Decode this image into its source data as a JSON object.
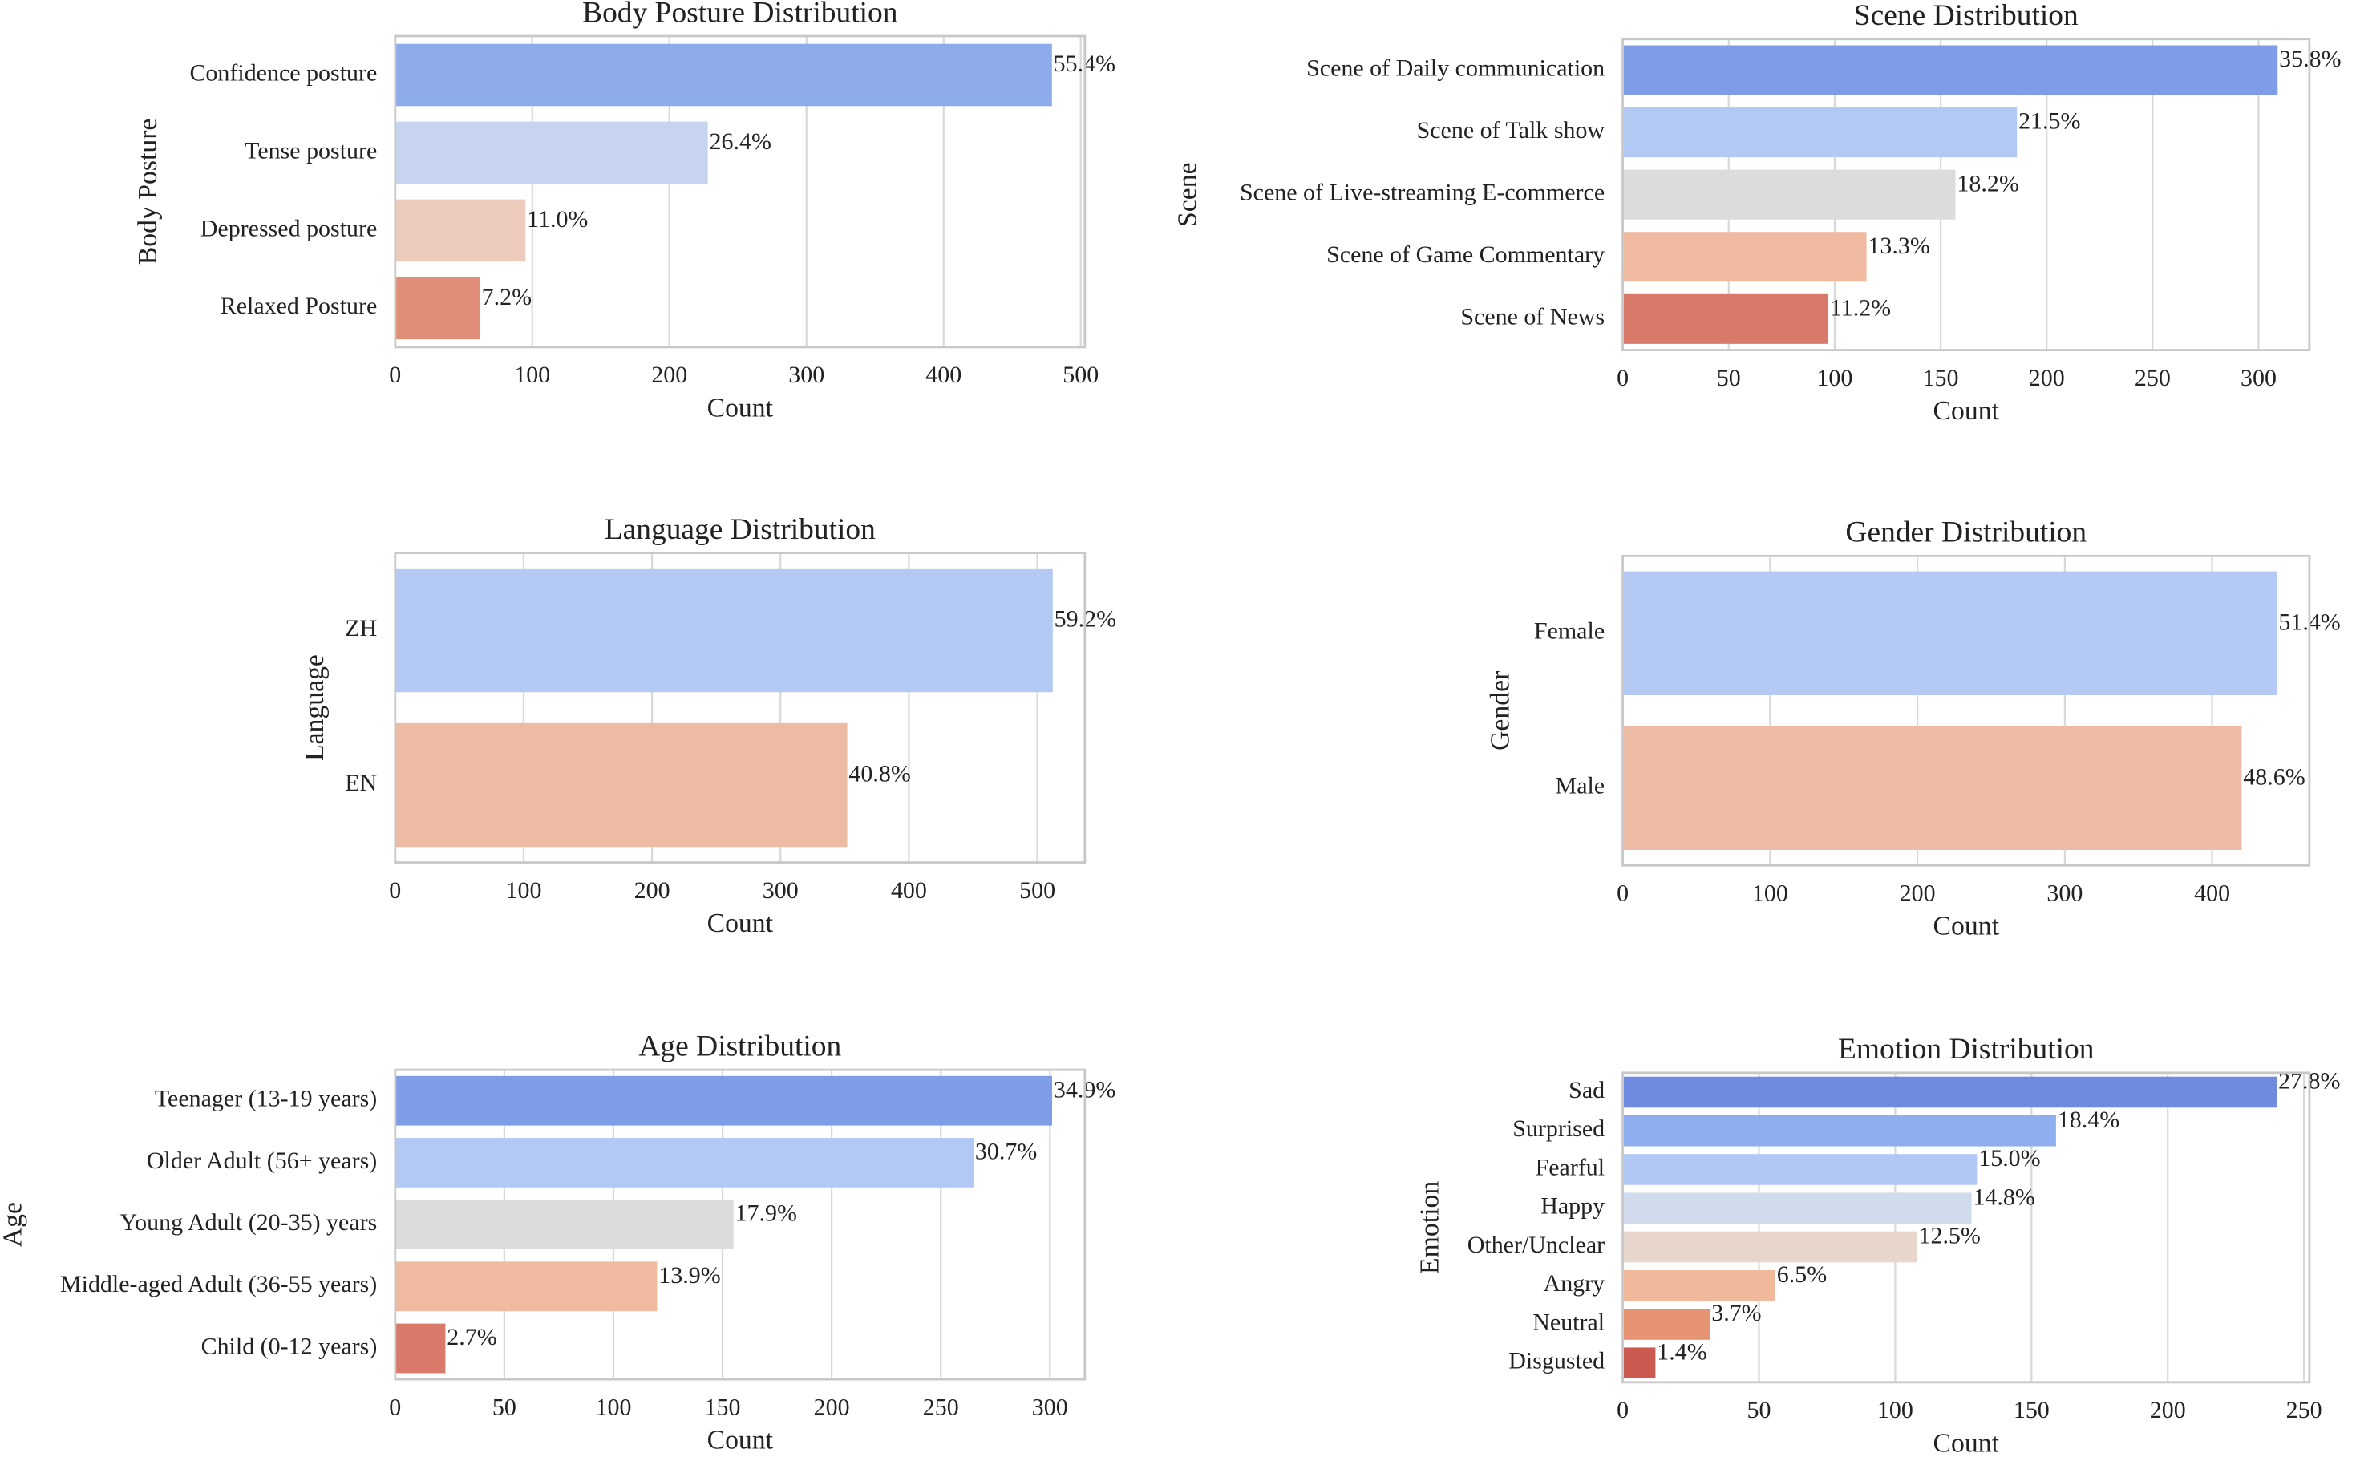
{
  "chart_data": [
    {
      "type": "bar",
      "orientation": "horizontal",
      "title": "Body Posture Distribution",
      "xlabel": "Count",
      "ylabel": "Body Posture",
      "categories": [
        "Confidence posture",
        "Tense posture",
        "Depressed posture",
        "Relaxed Posture"
      ],
      "values": [
        479,
        228,
        95,
        62
      ],
      "annotations": [
        "55.4%",
        "26.4%",
        "11.0%",
        "7.2%"
      ],
      "colors": [
        "#8daaea",
        "#c6d4f0",
        "#eccbbd",
        "#e08e77"
      ],
      "xlim": [
        0,
        503
      ],
      "xticks": [
        0,
        100,
        200,
        300,
        400,
        500
      ],
      "grid": true
    },
    {
      "type": "bar",
      "orientation": "horizontal",
      "title": "Scene Distribution",
      "xlabel": "Count",
      "ylabel": "Scene",
      "categories": [
        "Scene of Daily communication",
        "Scene of Talk show",
        "Scene of Live-streaming E-commerce",
        "Scene of Game Commentary",
        "Scene of News"
      ],
      "values": [
        309,
        186,
        157,
        115,
        97
      ],
      "annotations": [
        "35.8%",
        "21.5%",
        "18.2%",
        "13.3%",
        "11.2%"
      ],
      "colors": [
        "#7f9ce6",
        "#b2c9f4",
        "#dcdcdc",
        "#efbaa0",
        "#d8796a"
      ],
      "xlim": [
        0,
        324
      ],
      "xticks": [
        0,
        50,
        100,
        150,
        200,
        250,
        300
      ],
      "grid": true
    },
    {
      "type": "bar",
      "orientation": "horizontal",
      "title": "Language Distribution",
      "xlabel": "Count",
      "ylabel": "Language",
      "categories": [
        "ZH",
        "EN"
      ],
      "values": [
        512,
        352
      ],
      "annotations": [
        "59.2%",
        "40.8%"
      ],
      "colors": [
        "#b4c9f3",
        "#edbba4"
      ],
      "xlim": [
        0,
        537
      ],
      "xticks": [
        0,
        100,
        200,
        300,
        400,
        500
      ],
      "grid": true
    },
    {
      "type": "bar",
      "orientation": "horizontal",
      "title": "Gender Distribution",
      "xlabel": "Count",
      "ylabel": "Gender",
      "categories": [
        "Female",
        "Male"
      ],
      "values": [
        444,
        420
      ],
      "annotations": [
        "51.4%",
        "48.6%"
      ],
      "colors": [
        "#b4c9f3",
        "#edbba4"
      ],
      "xlim": [
        0,
        466
      ],
      "xticks": [
        0,
        100,
        200,
        300,
        400
      ],
      "grid": true
    },
    {
      "type": "bar",
      "orientation": "horizontal",
      "title": "Age Distribution",
      "xlabel": "Count",
      "ylabel": "Age",
      "categories": [
        "Teenager (13-19 years)",
        "Older Adult (56+ years)",
        "Young Adult (20-35) years",
        "Middle-aged Adult (36-55 years)",
        "Child (0-12 years)"
      ],
      "values": [
        301,
        265,
        155,
        120,
        23
      ],
      "annotations": [
        "34.9%",
        "30.7%",
        "17.9%",
        "13.9%",
        "2.7%"
      ],
      "colors": [
        "#7f9ce6",
        "#b2c9f4",
        "#dcdcdc",
        "#efbaa0",
        "#d8796a"
      ],
      "xlim": [
        0,
        316
      ],
      "xticks": [
        0,
        50,
        100,
        150,
        200,
        250,
        300
      ],
      "grid": true
    },
    {
      "type": "bar",
      "orientation": "horizontal",
      "title": "Emotion Distribution",
      "xlabel": "Count",
      "ylabel": "Emotion",
      "categories": [
        "Sad",
        "Surprised",
        "Fearful",
        "Happy",
        "Other/Unclear",
        "Angry",
        "Neutral",
        "Disgusted"
      ],
      "values": [
        240,
        159,
        130,
        128,
        108,
        56,
        32,
        12
      ],
      "annotations": [
        "27.8%",
        "18.4%",
        "15.0%",
        "14.8%",
        "12.5%",
        "6.5%",
        "3.7%",
        "1.4%"
      ],
      "colors": [
        "#6f8be0",
        "#8faef0",
        "#b1c8f5",
        "#d0dbed",
        "#e8d5cb",
        "#f0b99b",
        "#e59373",
        "#cd5a50"
      ],
      "xlim": [
        0,
        252
      ],
      "xticks": [
        0,
        50,
        100,
        150,
        200,
        250
      ],
      "grid": true
    }
  ]
}
